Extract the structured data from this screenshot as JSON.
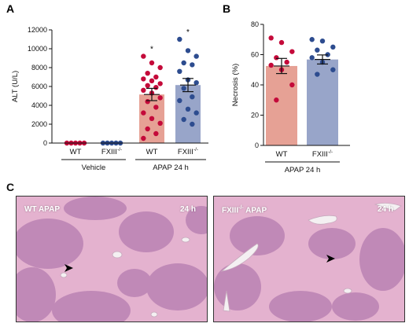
{
  "panel_labels": {
    "a": "A",
    "b": "B",
    "c": "C"
  },
  "colors": {
    "wt": "#c40a3a",
    "wt_bar": "#e6a195",
    "fx": "#2d4c8f",
    "fx_bar": "#98a5c9",
    "tissue": "#dba0c2"
  },
  "chart_data": [
    {
      "type": "bar",
      "panel": "A",
      "ylabel": "ALT (U/L)",
      "ylim": [
        0,
        12000
      ],
      "yticks": [
        "0",
        "2000",
        "4000",
        "6000",
        "8000",
        "10000",
        "12000"
      ],
      "categories": [
        "WT",
        "FXIII",
        "WT",
        "FXIII"
      ],
      "superscript": "-/-",
      "groups": [
        "Vehicle",
        "APAP 24 h"
      ],
      "significance": [
        "",
        "",
        "*",
        "*"
      ],
      "series": [
        {
          "category_index": 0,
          "group": "Vehicle",
          "mean": 0,
          "sem": 0,
          "points": [
            0,
            0,
            0,
            0,
            0
          ]
        },
        {
          "category_index": 1,
          "group": "Vehicle",
          "mean": 0,
          "sem": 0,
          "points": [
            0,
            0,
            0,
            0,
            0
          ]
        },
        {
          "category_index": 2,
          "group": "APAP 24 h",
          "mean": 5150,
          "sem": 650,
          "points": [
            9200,
            8500,
            8000,
            7400,
            7000,
            6800,
            6600,
            6300,
            6100,
            5900,
            5600,
            5300,
            4800,
            4400,
            3800,
            3200,
            2600,
            2100,
            1500,
            1000,
            500
          ]
        },
        {
          "category_index": 3,
          "group": "APAP 24 h",
          "mean": 6150,
          "sem": 700,
          "points": [
            11000,
            9800,
            9200,
            8500,
            8300,
            7600,
            6700,
            6400,
            5800,
            4900,
            4500,
            3600,
            3200,
            2500,
            2000
          ]
        }
      ]
    },
    {
      "type": "bar",
      "panel": "B",
      "ylabel": "Necrosis (%)",
      "ylim": [
        0,
        80
      ],
      "yticks": [
        "0",
        "20",
        "40",
        "60",
        "80"
      ],
      "categories": [
        "WT",
        "FXIII"
      ],
      "superscript": "-/-",
      "groups": [
        "APAP 24 h"
      ],
      "series": [
        {
          "category_index": 0,
          "mean": 52.5,
          "sem": 5,
          "points": [
            71,
            68,
            62,
            58,
            55,
            53,
            50,
            40,
            30
          ]
        },
        {
          "category_index": 1,
          "mean": 56.8,
          "sem": 3,
          "points": [
            70,
            69,
            65,
            63,
            60,
            58,
            55,
            50,
            47
          ]
        }
      ]
    }
  ],
  "micrographs": [
    {
      "label": "WT APAP",
      "time": "24 h"
    },
    {
      "label": "FXIII",
      "label_sup": "-/-",
      "label_rest": " APAP",
      "time": "24 h"
    }
  ]
}
